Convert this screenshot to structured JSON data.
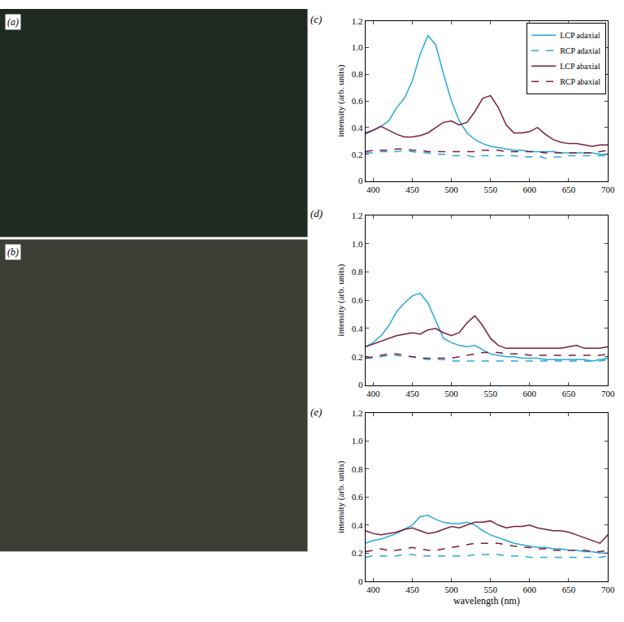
{
  "images": [
    {
      "label": "(a)"
    },
    {
      "label": "(b)"
    }
  ],
  "chart_data": [
    {
      "type": "line",
      "title": "(c)",
      "ylabel": "intensity (arb. units)",
      "legend": "upper right",
      "grid": false,
      "x": [
        390,
        400,
        410,
        420,
        430,
        440,
        450,
        460,
        470,
        480,
        490,
        500,
        510,
        520,
        530,
        540,
        550,
        560,
        570,
        580,
        590,
        600,
        610,
        620,
        630,
        640,
        650,
        660,
        670,
        680,
        690,
        700
      ],
      "xlim": [
        390,
        700
      ],
      "xticks": [
        400,
        450,
        500,
        550,
        600,
        650,
        700
      ],
      "ylim": [
        0,
        1.2
      ],
      "yticks": [
        0,
        0.2,
        0.4,
        0.6,
        0.8,
        {
          "value": 1,
          "label": "1.0"
        },
        1.2
      ],
      "series": [
        {
          "name": "LCP adaxial",
          "color": "#29a9d9",
          "line_style": "solid",
          "values": [
            0.35,
            0.38,
            0.41,
            0.45,
            0.55,
            0.62,
            0.75,
            0.95,
            1.09,
            1.02,
            0.8,
            0.6,
            0.45,
            0.36,
            0.31,
            0.28,
            0.26,
            0.25,
            0.24,
            0.23,
            0.23,
            0.22,
            0.22,
            0.22,
            0.22,
            0.21,
            0.21,
            0.21,
            0.21,
            0.21,
            0.2,
            0.2
          ]
        },
        {
          "name": "RCP adaxial",
          "color": "#29a9d9",
          "line_style": "dashed",
          "values": [
            0.21,
            0.21,
            0.22,
            0.22,
            0.22,
            0.23,
            0.22,
            0.21,
            0.21,
            0.2,
            0.2,
            0.19,
            0.19,
            0.19,
            0.18,
            0.19,
            0.19,
            0.19,
            0.19,
            0.19,
            0.18,
            0.18,
            0.19,
            0.17,
            0.18,
            0.18,
            0.19,
            0.19,
            0.19,
            0.19,
            0.19,
            0.19
          ]
        },
        {
          "name": "LCP abaxial",
          "color": "#7a1f3d",
          "line_style": "solid",
          "values": [
            0.36,
            0.38,
            0.41,
            0.38,
            0.35,
            0.33,
            0.33,
            0.34,
            0.36,
            0.4,
            0.44,
            0.45,
            0.42,
            0.44,
            0.52,
            0.62,
            0.64,
            0.55,
            0.42,
            0.36,
            0.36,
            0.37,
            0.4,
            0.35,
            0.31,
            0.29,
            0.28,
            0.28,
            0.27,
            0.26,
            0.27,
            0.27
          ]
        },
        {
          "name": "RCP abaxial",
          "color": "#7a1f3d",
          "line_style": "dashed",
          "values": [
            0.22,
            0.23,
            0.23,
            0.23,
            0.24,
            0.24,
            0.23,
            0.23,
            0.22,
            0.22,
            0.22,
            0.22,
            0.22,
            0.22,
            0.22,
            0.23,
            0.23,
            0.23,
            0.22,
            0.22,
            0.22,
            0.22,
            0.22,
            0.21,
            0.21,
            0.21,
            0.21,
            0.21,
            0.21,
            0.21,
            0.22,
            0.23
          ]
        }
      ]
    },
    {
      "type": "line",
      "title": "(d)",
      "ylabel": "intensity (arb. units)",
      "grid": false,
      "x": [
        390,
        400,
        410,
        420,
        430,
        440,
        450,
        460,
        470,
        480,
        490,
        500,
        510,
        520,
        530,
        540,
        550,
        560,
        570,
        580,
        590,
        600,
        610,
        620,
        630,
        640,
        650,
        660,
        670,
        680,
        690,
        700
      ],
      "xlim": [
        390,
        700
      ],
      "xticks": [
        400,
        450,
        500,
        550,
        600,
        650,
        700
      ],
      "ylim": [
        0,
        1.2
      ],
      "yticks": [
        0,
        0.2,
        0.4,
        0.6,
        0.8,
        {
          "value": 1,
          "label": "1.0"
        },
        1.2
      ],
      "series": [
        {
          "name": "LCP adaxial",
          "color": "#29a9d9",
          "line_style": "solid",
          "values": [
            0.27,
            0.3,
            0.35,
            0.42,
            0.52,
            0.58,
            0.63,
            0.65,
            0.58,
            0.45,
            0.33,
            0.3,
            0.28,
            0.27,
            0.28,
            0.25,
            0.22,
            0.21,
            0.2,
            0.2,
            0.19,
            0.19,
            0.19,
            0.18,
            0.18,
            0.18,
            0.18,
            0.18,
            0.18,
            0.17,
            0.18,
            0.19
          ]
        },
        {
          "name": "RCP adaxial",
          "color": "#29a9d9",
          "line_style": "dashed",
          "values": [
            0.19,
            0.19,
            0.2,
            0.21,
            0.21,
            0.2,
            0.2,
            0.19,
            0.18,
            0.18,
            0.18,
            0.17,
            0.17,
            0.17,
            0.17,
            0.17,
            0.17,
            0.17,
            0.17,
            0.17,
            0.17,
            0.17,
            0.17,
            0.17,
            0.17,
            0.17,
            0.17,
            0.17,
            0.17,
            0.17,
            0.17,
            0.18
          ]
        },
        {
          "name": "LCP abaxial",
          "color": "#7a1f3d",
          "line_style": "solid",
          "values": [
            0.27,
            0.29,
            0.31,
            0.33,
            0.35,
            0.36,
            0.37,
            0.36,
            0.39,
            0.4,
            0.37,
            0.35,
            0.37,
            0.44,
            0.49,
            0.42,
            0.33,
            0.28,
            0.26,
            0.26,
            0.26,
            0.26,
            0.26,
            0.26,
            0.26,
            0.26,
            0.27,
            0.28,
            0.26,
            0.26,
            0.26,
            0.27
          ]
        },
        {
          "name": "RCP abaxial",
          "color": "#7a1f3d",
          "line_style": "dashed",
          "values": [
            0.19,
            0.2,
            0.21,
            0.22,
            0.22,
            0.21,
            0.2,
            0.19,
            0.19,
            0.19,
            0.19,
            0.19,
            0.2,
            0.21,
            0.22,
            0.23,
            0.23,
            0.23,
            0.22,
            0.22,
            0.22,
            0.21,
            0.21,
            0.21,
            0.21,
            0.21,
            0.21,
            0.21,
            0.21,
            0.21,
            0.21,
            0.22
          ]
        }
      ]
    },
    {
      "type": "line",
      "title": "(e)",
      "xlabel": "wavelength (nm)",
      "ylabel": "intensity (arb. units)",
      "grid": false,
      "x": [
        390,
        400,
        410,
        420,
        430,
        440,
        450,
        460,
        470,
        480,
        490,
        500,
        510,
        520,
        530,
        540,
        550,
        560,
        570,
        580,
        590,
        600,
        610,
        620,
        630,
        640,
        650,
        660,
        670,
        680,
        690,
        700
      ],
      "xlim": [
        390,
        700
      ],
      "xticks": [
        400,
        450,
        500,
        550,
        600,
        650,
        700
      ],
      "ylim": [
        0,
        1.2
      ],
      "yticks": [
        0,
        0.2,
        0.4,
        0.6,
        0.8,
        {
          "value": 1,
          "label": "1.0"
        },
        1.2
      ],
      "series": [
        {
          "name": "LCP adaxial",
          "color": "#29a9d9",
          "line_style": "solid",
          "values": [
            0.27,
            0.29,
            0.3,
            0.32,
            0.34,
            0.37,
            0.4,
            0.46,
            0.47,
            0.44,
            0.42,
            0.41,
            0.41,
            0.42,
            0.4,
            0.36,
            0.33,
            0.31,
            0.29,
            0.27,
            0.26,
            0.25,
            0.24,
            0.24,
            0.23,
            0.23,
            0.22,
            0.22,
            0.21,
            0.21,
            0.2,
            0.2
          ]
        },
        {
          "name": "RCP adaxial",
          "color": "#29a9d9",
          "line_style": "dashed",
          "values": [
            0.17,
            0.18,
            0.18,
            0.18,
            0.18,
            0.19,
            0.19,
            0.18,
            0.18,
            0.18,
            0.18,
            0.18,
            0.18,
            0.18,
            0.19,
            0.19,
            0.19,
            0.19,
            0.18,
            0.18,
            0.18,
            0.17,
            0.17,
            0.17,
            0.17,
            0.17,
            0.17,
            0.17,
            0.17,
            0.17,
            0.17,
            0.18
          ]
        },
        {
          "name": "LCP abaxial",
          "color": "#7a1f3d",
          "line_style": "solid",
          "values": [
            0.36,
            0.34,
            0.33,
            0.34,
            0.35,
            0.37,
            0.38,
            0.36,
            0.34,
            0.35,
            0.37,
            0.39,
            0.38,
            0.4,
            0.42,
            0.42,
            0.43,
            0.4,
            0.38,
            0.39,
            0.39,
            0.4,
            0.38,
            0.37,
            0.36,
            0.36,
            0.35,
            0.33,
            0.31,
            0.29,
            0.27,
            0.33
          ]
        },
        {
          "name": "RCP abaxial",
          "color": "#7a1f3d",
          "line_style": "dashed",
          "values": [
            0.21,
            0.22,
            0.23,
            0.22,
            0.22,
            0.23,
            0.24,
            0.23,
            0.22,
            0.22,
            0.23,
            0.24,
            0.25,
            0.26,
            0.27,
            0.27,
            0.27,
            0.27,
            0.26,
            0.25,
            0.24,
            0.24,
            0.23,
            0.23,
            0.22,
            0.22,
            0.22,
            0.22,
            0.22,
            0.21,
            0.21,
            0.22
          ]
        }
      ]
    }
  ]
}
